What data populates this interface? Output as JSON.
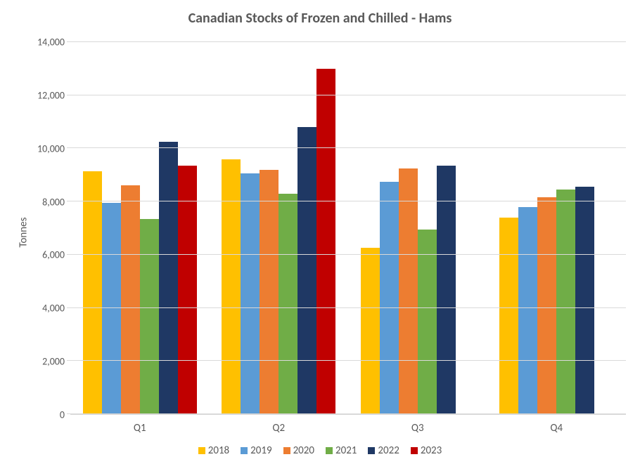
{
  "chart": {
    "type": "bar",
    "title": "Canadian Stocks of Frozen and Chilled - Hams",
    "title_fontsize": 20,
    "title_color": "#595959",
    "ylabel": "Tonnes",
    "ylabel_fontsize": 15,
    "axis_text_color": "#595959",
    "background_color": "#ffffff",
    "grid_color": "#d9d9d9",
    "ylim": [
      0,
      14000
    ],
    "ytick_step": 2000,
    "yticks": [
      0,
      2000,
      4000,
      6000,
      8000,
      10000,
      12000,
      14000
    ],
    "ytick_labels": [
      "0",
      "2,000",
      "4,000",
      "6,000",
      "8,000",
      "10,000",
      "12,000",
      "14,000"
    ],
    "categories": [
      "Q1",
      "Q2",
      "Q3",
      "Q4"
    ],
    "series": [
      {
        "name": "2018",
        "color": "#ffc000",
        "values": [
          9150,
          9600,
          6250,
          7400
        ]
      },
      {
        "name": "2019",
        "color": "#5b9bd5",
        "values": [
          7950,
          9050,
          8750,
          7800
        ]
      },
      {
        "name": "2020",
        "color": "#ed7d31",
        "values": [
          8600,
          9200,
          9250,
          8150
        ]
      },
      {
        "name": "2021",
        "color": "#70ad47",
        "values": [
          7350,
          8300,
          6950,
          8450
        ]
      },
      {
        "name": "2022",
        "color": "#1f3864",
        "values": [
          10250,
          10800,
          9350,
          8550
        ]
      },
      {
        "name": "2023",
        "color": "#c00000",
        "values": [
          9350,
          13000,
          null,
          null
        ]
      }
    ],
    "bar_gap_ratio": 0.0,
    "group_padding_ratio": 0.15,
    "font_family": "Calibri, Arial, sans-serif"
  }
}
